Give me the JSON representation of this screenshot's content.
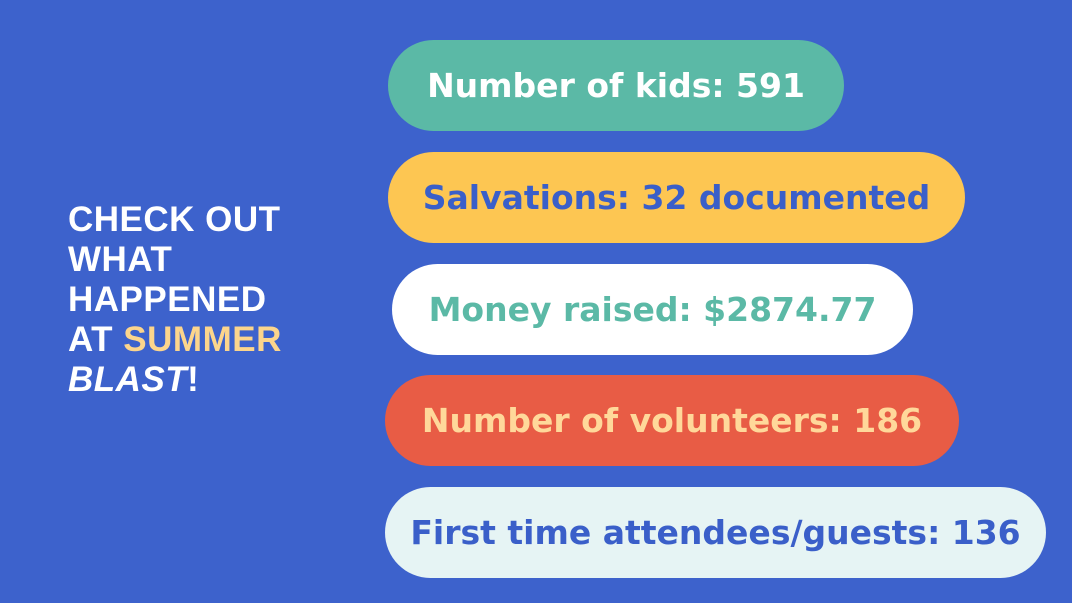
{
  "headline": {
    "lead": "CHECK OUT WHAT HAPPENED AT",
    "highlight": "SUMMER",
    "emphasis": "BLAST",
    "end": "!"
  },
  "stats": [
    "Number of kids: 591",
    "Salvations: 32 documented",
    "Money raised: $2874.77",
    "Number of volunteers: 186",
    "First time attendees/guests: 136"
  ]
}
